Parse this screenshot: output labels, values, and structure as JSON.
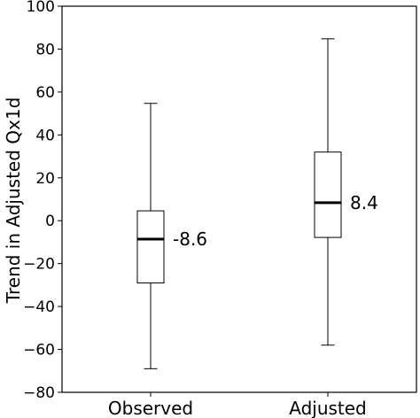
{
  "chart_data": {
    "type": "box",
    "title": "",
    "xlabel": "",
    "ylabel": "Trend in Adjusted Qx1d",
    "ylim": [
      -80,
      100
    ],
    "yticks": [
      -80,
      -60,
      -40,
      -20,
      0,
      20,
      40,
      60,
      80,
      100
    ],
    "ytick_labels": [
      "−80",
      "−60",
      "−40",
      "−20",
      "0",
      "20",
      "40",
      "60",
      "80",
      "100"
    ],
    "grid": false,
    "boxes": [
      {
        "category": "Observed",
        "whisker_low": -69,
        "q1": -29,
        "median": -8.6,
        "q3": 4.6,
        "whisker_high": 54.7,
        "median_label": "-8.6"
      },
      {
        "category": "Adjusted",
        "whisker_low": -58,
        "q1": -7.8,
        "median": 8.4,
        "q3": 32,
        "whisker_high": 84.8,
        "median_label": "8.4"
      }
    ]
  }
}
